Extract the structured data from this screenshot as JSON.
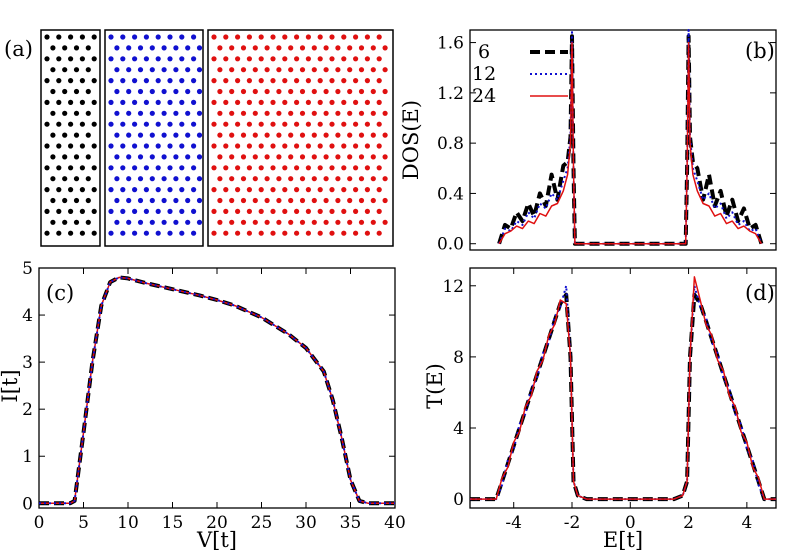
{
  "figure": {
    "panel_labels": [
      "(a)",
      "(b)",
      "(c)",
      "(d)"
    ]
  },
  "lattice": {
    "label": "(a)",
    "ribbons": [
      {
        "width": 6,
        "color": "#000000"
      },
      {
        "width": 12,
        "color": "#1010d0"
      },
      {
        "width": 24,
        "color": "#e01010"
      }
    ]
  },
  "chart_data": [
    {
      "id": "b",
      "type": "line",
      "label": "(b)",
      "xlabel": "",
      "ylabel": "DOS(E)",
      "xlim": [
        -5.5,
        5.0
      ],
      "ylim": [
        -0.05,
        1.7
      ],
      "xticks": [],
      "yticks": [
        0.0,
        0.4,
        0.8,
        1.2,
        1.6
      ],
      "ytick_labels": [
        "0.0",
        "0.4",
        "0.8",
        "1.2",
        "1.6"
      ],
      "legend": {
        "position": "top-left",
        "entries": [
          "6",
          "12",
          "24"
        ]
      },
      "series": [
        {
          "name": "6",
          "color": "#000000",
          "style": "dashed",
          "x": [
            -4.5,
            -4.3,
            -4.1,
            -3.9,
            -3.7,
            -3.5,
            -3.3,
            -3.1,
            -2.9,
            -2.7,
            -2.5,
            -2.3,
            -2.15,
            -2.05,
            -2.0,
            -1.95,
            -1.9,
            1.9,
            1.95,
            2.0,
            2.05,
            2.15,
            2.3,
            2.5,
            2.7,
            2.9,
            3.1,
            3.3,
            3.5,
            3.7,
            3.9,
            4.1,
            4.3,
            4.5
          ],
          "y": [
            0.0,
            0.15,
            0.12,
            0.25,
            0.18,
            0.32,
            0.22,
            0.4,
            0.3,
            0.55,
            0.35,
            0.62,
            0.65,
            0.85,
            1.65,
            0.6,
            0.0,
            0.0,
            0.6,
            1.65,
            0.85,
            0.65,
            0.6,
            0.35,
            0.55,
            0.3,
            0.42,
            0.22,
            0.35,
            0.18,
            0.28,
            0.12,
            0.15,
            0.0
          ]
        },
        {
          "name": "12",
          "color": "#1010d0",
          "style": "dotted",
          "x": [
            -4.5,
            -4.3,
            -4.1,
            -3.9,
            -3.7,
            -3.5,
            -3.3,
            -3.1,
            -2.9,
            -2.7,
            -2.5,
            -2.3,
            -2.15,
            -2.05,
            -2.0,
            -1.95,
            -1.9,
            1.9,
            1.95,
            2.0,
            2.05,
            2.15,
            2.3,
            2.5,
            2.7,
            2.9,
            3.1,
            3.3,
            3.5,
            3.7,
            3.9,
            4.1,
            4.3,
            4.5
          ],
          "y": [
            0.0,
            0.12,
            0.1,
            0.18,
            0.15,
            0.25,
            0.2,
            0.32,
            0.28,
            0.4,
            0.35,
            0.5,
            0.6,
            0.85,
            1.7,
            0.6,
            0.0,
            0.0,
            0.6,
            1.7,
            0.85,
            0.6,
            0.5,
            0.35,
            0.4,
            0.28,
            0.32,
            0.2,
            0.25,
            0.15,
            0.18,
            0.1,
            0.12,
            0.0
          ]
        },
        {
          "name": "24",
          "color": "#e01010",
          "style": "solid",
          "x": [
            -4.5,
            -4.3,
            -4.1,
            -3.9,
            -3.7,
            -3.5,
            -3.3,
            -3.1,
            -2.9,
            -2.7,
            -2.5,
            -2.3,
            -2.15,
            -2.05,
            -2.0,
            -1.95,
            -1.9,
            1.9,
            1.95,
            2.0,
            2.05,
            2.15,
            2.3,
            2.5,
            2.7,
            2.9,
            3.1,
            3.3,
            3.5,
            3.7,
            3.9,
            4.1,
            4.3,
            4.5
          ],
          "y": [
            0.0,
            0.08,
            0.1,
            0.14,
            0.12,
            0.18,
            0.16,
            0.24,
            0.22,
            0.3,
            0.32,
            0.42,
            0.55,
            0.8,
            1.6,
            0.6,
            0.0,
            0.0,
            0.6,
            1.6,
            0.8,
            0.55,
            0.42,
            0.32,
            0.3,
            0.22,
            0.24,
            0.16,
            0.18,
            0.12,
            0.14,
            0.1,
            0.08,
            0.0
          ]
        }
      ]
    },
    {
      "id": "c",
      "type": "line",
      "label": "(c)",
      "xlabel": "V[t]",
      "ylabel": "I[t]",
      "xlim": [
        0,
        40
      ],
      "ylim": [
        -0.1,
        5.0
      ],
      "xticks": [
        0,
        5,
        10,
        15,
        20,
        25,
        30,
        35,
        40
      ],
      "xtick_labels": [
        "0",
        "5",
        "10",
        "15",
        "20",
        "25",
        "30",
        "35",
        "40"
      ],
      "yticks": [
        0,
        1,
        2,
        3,
        4,
        5
      ],
      "ytick_labels": [
        "0",
        "1",
        "2",
        "3",
        "4",
        "5"
      ],
      "series": [
        {
          "name": "6",
          "color": "#000000",
          "style": "dashed",
          "x": [
            0,
            3.5,
            4,
            5,
            6,
            7,
            8,
            9,
            10,
            12,
            15,
            18,
            20,
            22,
            25,
            28,
            30,
            32,
            33,
            34,
            35,
            36,
            37,
            40
          ],
          "y": [
            0,
            0,
            0.05,
            1.5,
            3.0,
            4.2,
            4.7,
            4.8,
            4.78,
            4.68,
            4.55,
            4.42,
            4.32,
            4.2,
            3.95,
            3.6,
            3.3,
            2.8,
            2.2,
            1.4,
            0.5,
            0.05,
            0,
            0
          ]
        },
        {
          "name": "12",
          "color": "#1010d0",
          "style": "dotted",
          "x": [
            0,
            3.5,
            4,
            5,
            6,
            7,
            8,
            9,
            10,
            12,
            15,
            18,
            20,
            22,
            25,
            28,
            30,
            32,
            33,
            34,
            35,
            36,
            37,
            40
          ],
          "y": [
            0,
            0,
            0.05,
            1.5,
            3.0,
            4.2,
            4.7,
            4.8,
            4.78,
            4.68,
            4.55,
            4.42,
            4.32,
            4.2,
            3.95,
            3.6,
            3.3,
            2.8,
            2.2,
            1.4,
            0.5,
            0.05,
            0,
            0
          ]
        },
        {
          "name": "24",
          "color": "#e01010",
          "style": "solid",
          "x": [
            0,
            3.5,
            4,
            5,
            6,
            7,
            8,
            9,
            10,
            12,
            15,
            18,
            20,
            22,
            25,
            28,
            30,
            32,
            33,
            34,
            35,
            36,
            37,
            40
          ],
          "y": [
            0,
            0,
            0.05,
            1.5,
            3.0,
            4.2,
            4.7,
            4.8,
            4.78,
            4.68,
            4.55,
            4.42,
            4.32,
            4.2,
            3.95,
            3.6,
            3.3,
            2.8,
            2.2,
            1.4,
            0.5,
            0.05,
            0,
            0
          ]
        }
      ]
    },
    {
      "id": "d",
      "type": "line",
      "label": "(d)",
      "xlabel": "E[t]",
      "ylabel": "T(E)",
      "xlim": [
        -5.5,
        5.0
      ],
      "ylim": [
        -0.5,
        13
      ],
      "xticks": [
        -4,
        -2,
        0,
        2,
        4
      ],
      "xtick_labels": [
        "-4",
        "-2",
        "0",
        "2",
        "4"
      ],
      "yticks": [
        0,
        4,
        8,
        12
      ],
      "ytick_labels": [
        "0",
        "4",
        "8",
        "12"
      ],
      "series": [
        {
          "name": "6",
          "color": "#000000",
          "style": "dashed",
          "x": [
            -5.5,
            -4.6,
            -4.4,
            -4.2,
            -4.0,
            -3.8,
            -3.6,
            -3.4,
            -3.2,
            -3.0,
            -2.8,
            -2.6,
            -2.4,
            -2.2,
            -2.05,
            -1.95,
            -1.8,
            -1.5,
            -1.0,
            0,
            1.0,
            1.5,
            1.8,
            1.95,
            2.05,
            2.2,
            2.4,
            2.6,
            2.8,
            3.0,
            3.2,
            3.4,
            3.6,
            3.8,
            4.0,
            4.2,
            4.4,
            4.6,
            5.0
          ],
          "y": [
            0,
            0,
            1,
            2,
            3,
            4,
            5,
            6,
            7,
            8,
            9,
            10,
            11,
            11.5,
            8,
            1,
            0.2,
            0,
            0,
            0,
            0,
            0,
            0.2,
            1,
            8,
            11.5,
            11,
            10,
            9,
            8,
            7,
            6,
            5,
            4,
            3,
            2,
            1,
            0,
            0
          ]
        },
        {
          "name": "12",
          "color": "#1010d0",
          "style": "dotted",
          "x": [
            -5.5,
            -4.6,
            -4.4,
            -4.2,
            -4.0,
            -3.8,
            -3.6,
            -3.4,
            -3.2,
            -3.0,
            -2.8,
            -2.6,
            -2.4,
            -2.2,
            -2.05,
            -1.95,
            -1.8,
            -1.5,
            -1.0,
            0,
            1.0,
            1.5,
            1.8,
            1.95,
            2.05,
            2.2,
            2.4,
            2.6,
            2.8,
            3.0,
            3.2,
            3.4,
            3.6,
            3.8,
            4.0,
            4.2,
            4.4,
            4.6,
            5.0
          ],
          "y": [
            0,
            0,
            0.8,
            2.2,
            2.8,
            4.2,
            4.8,
            6.2,
            6.8,
            8.2,
            8.8,
            10.2,
            10.8,
            12,
            8,
            1,
            0.2,
            0,
            0,
            0,
            0,
            0,
            0.2,
            1,
            8,
            12,
            10.8,
            10.2,
            8.8,
            8.2,
            6.8,
            6.2,
            4.8,
            4.2,
            2.8,
            2.2,
            0.8,
            0,
            0
          ]
        },
        {
          "name": "24",
          "color": "#e01010",
          "style": "solid",
          "x": [
            -5.5,
            -4.6,
            -4.4,
            -4.2,
            -4.0,
            -3.8,
            -3.6,
            -3.4,
            -3.2,
            -3.0,
            -2.8,
            -2.6,
            -2.4,
            -2.2,
            -2.05,
            -1.95,
            -1.8,
            -1.5,
            -1.0,
            0,
            1.0,
            1.5,
            1.8,
            1.95,
            2.05,
            2.2,
            2.4,
            2.6,
            2.8,
            3.0,
            3.2,
            3.4,
            3.6,
            3.8,
            4.0,
            4.2,
            4.4,
            4.6,
            5.0
          ],
          "y": [
            0,
            0,
            1.2,
            1.8,
            3.2,
            3.8,
            5.2,
            5.8,
            7.2,
            7.8,
            9.2,
            9.8,
            11.2,
            11,
            8,
            1,
            0.2,
            0,
            0,
            0,
            0,
            0,
            0.2,
            1,
            8,
            12.5,
            11.2,
            9.8,
            9.2,
            7.8,
            7.2,
            5.8,
            5.2,
            3.8,
            3.2,
            1.8,
            1.2,
            0,
            0
          ]
        }
      ]
    }
  ]
}
